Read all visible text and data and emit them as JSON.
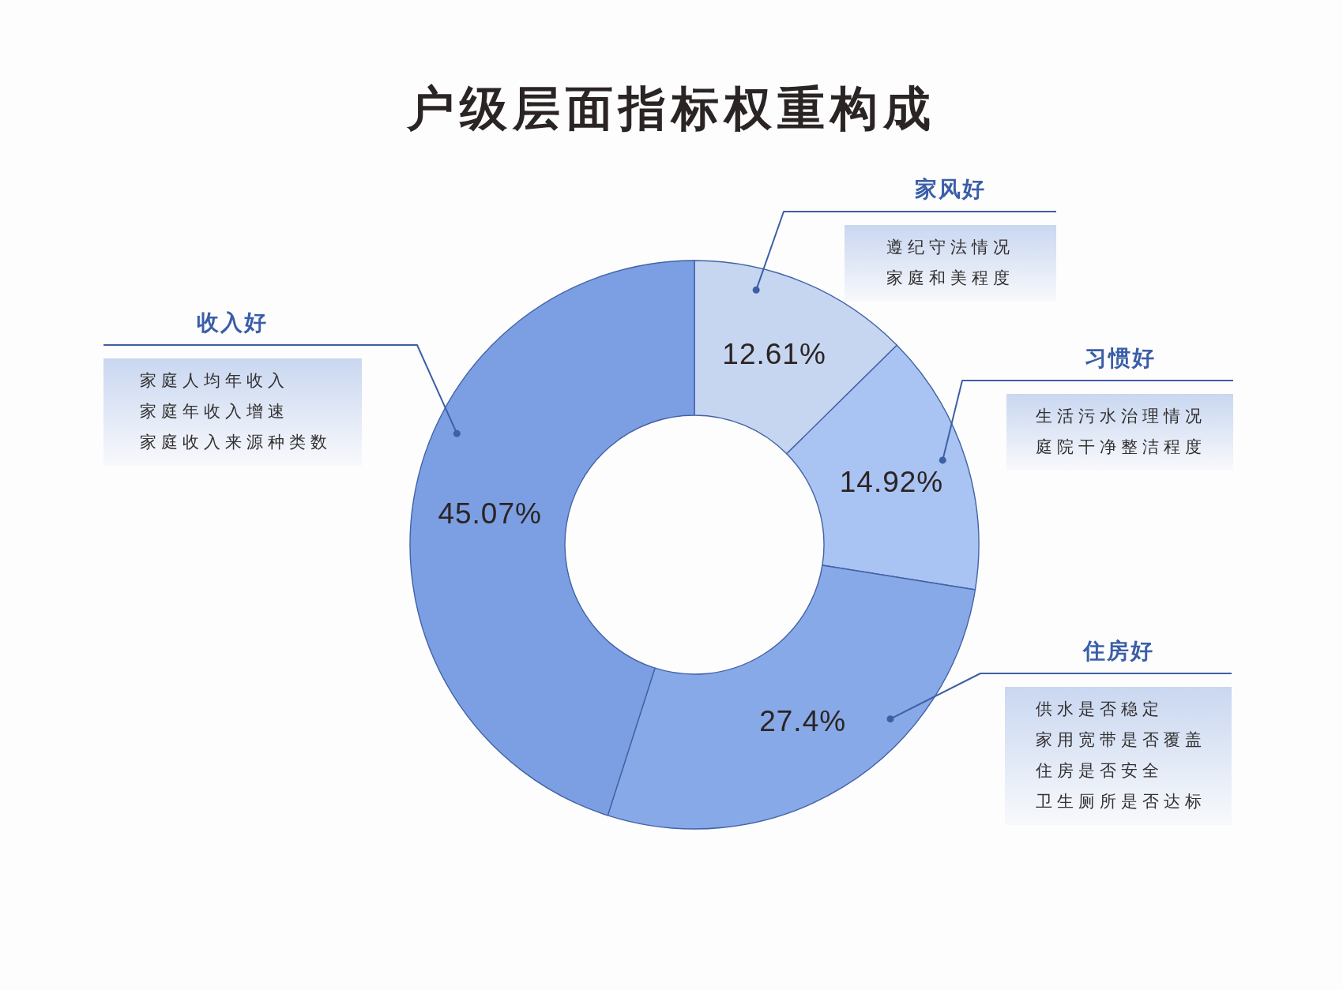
{
  "chart_data": {
    "type": "donut",
    "title": "户级层面指标权重构成",
    "categories": [
      "家风好",
      "习惯好",
      "住房好",
      "收入好"
    ],
    "values": [
      12.61,
      14.92,
      27.4,
      45.07
    ],
    "colors": [
      "#c6d5f0",
      "#a9c3f2",
      "#88a9e7",
      "#7c9fe3"
    ],
    "value_labels": [
      "12.61%",
      "14.92%",
      "27.4%",
      "45.07%"
    ],
    "annotations": [
      "遵纪守法情况",
      "家庭和美程度",
      "生活污水治理情况",
      "庭院干净整洁程度",
      "供水是否稳定",
      "家用宽带是否覆盖",
      "住房是否安全",
      "卫生厕所是否达标",
      "家庭人均年收入",
      "家庭年收入增速",
      "家庭收入来源种类数"
    ]
  }
}
